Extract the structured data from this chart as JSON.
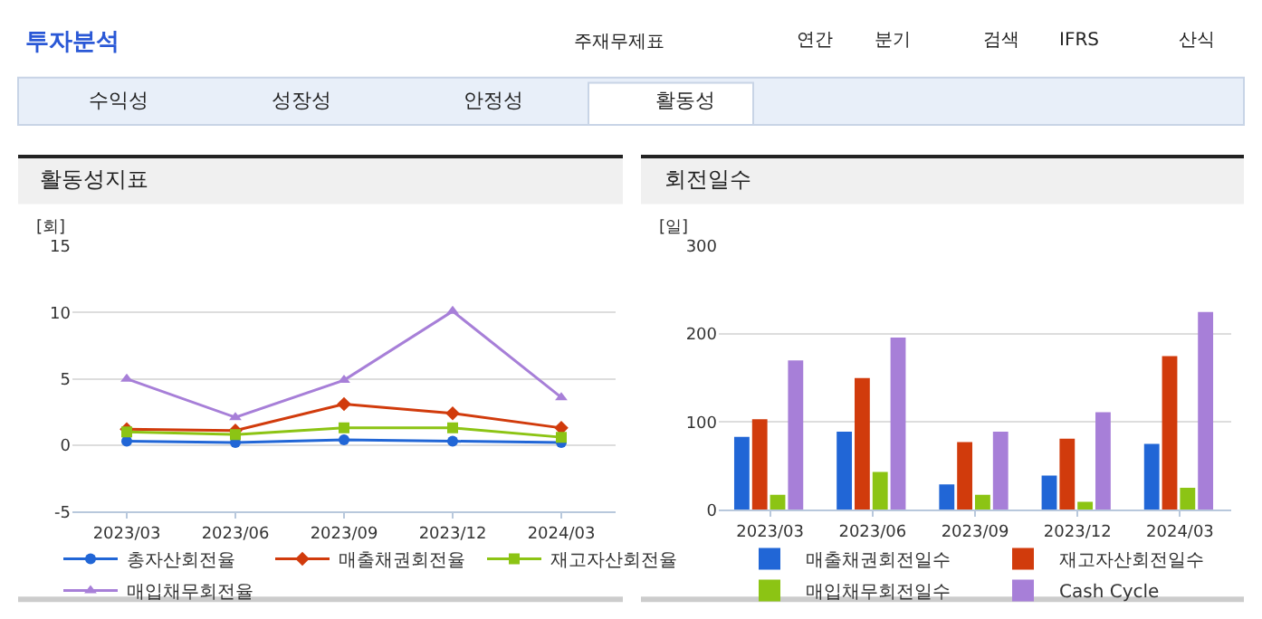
{
  "chart_data": [
    {
      "type": "other",
      "title": "투자분석",
      "annotations": [
        "주재무제표",
        "연간",
        "분기",
        "검색",
        "IFRS",
        "산식",
        "수익성",
        "성장성",
        "안정성",
        "활동성"
      ]
    },
    {
      "type": "line",
      "title": "활동성지표",
      "ylabel": "[회]",
      "categories": [
        "2023/03",
        "2023/06",
        "2023/09",
        "2023/12",
        "2024/03"
      ],
      "ylim": [
        -5,
        15
      ],
      "yticks": [
        -5,
        0,
        5,
        10,
        15
      ],
      "grid": "y",
      "legend": "bottom",
      "line_style": "solid",
      "series": [
        {
          "name": "총자산회전율",
          "color": "#2166d6",
          "marker": "circle",
          "values": [
            0.3,
            0.2,
            0.4,
            0.3,
            0.2
          ]
        },
        {
          "name": "매출채권회전율",
          "color": "#d13b0c",
          "marker": "diamond",
          "values": [
            1.2,
            1.1,
            3.1,
            2.4,
            1.3
          ]
        },
        {
          "name": "재고자산회전율",
          "color": "#8cc414",
          "marker": "square",
          "values": [
            1.0,
            0.8,
            1.3,
            1.3,
            0.6
          ]
        },
        {
          "name": "매입채무회전율",
          "color": "#a77fd8",
          "marker": "triangle",
          "values": [
            5.0,
            2.1,
            4.9,
            10.1,
            3.6
          ]
        }
      ]
    },
    {
      "type": "bar",
      "title": "회전일수",
      "ylabel": "[일]",
      "categories": [
        "2023/03",
        "2023/06",
        "2023/09",
        "2023/12",
        "2024/03"
      ],
      "ylim": [
        0,
        300
      ],
      "yticks": [
        0,
        100,
        200,
        300
      ],
      "grid": "y",
      "legend": "bottom",
      "series": [
        {
          "name": "매출채권회전일수",
          "color": "#2166d6",
          "values": [
            83,
            89,
            29,
            39,
            75
          ]
        },
        {
          "name": "재고자산회전일수",
          "color": "#d13b0c",
          "values": [
            103,
            150,
            77,
            81,
            175
          ]
        },
        {
          "name": "매입채무회전일수",
          "color": "#8cc414",
          "values": [
            17,
            43,
            17,
            9,
            25
          ]
        },
        {
          "name": "Cash Cycle",
          "color": "#a77fd8",
          "values": [
            170,
            196,
            89,
            111,
            225
          ]
        }
      ]
    }
  ]
}
